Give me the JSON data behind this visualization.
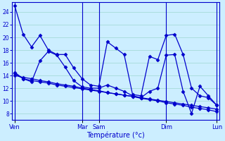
{
  "background_color": "#cceeff",
  "grid_color": "#aadddd",
  "line_color": "#0000cc",
  "xlabel": "Température (°c)",
  "ylabel_ticks": [
    8,
    10,
    12,
    14,
    16,
    18,
    20,
    22,
    24
  ],
  "ylim": [
    7.0,
    25.5
  ],
  "xlim": [
    -0.3,
    24.3
  ],
  "day_labels": [
    "Ven",
    "Mar",
    "Sam",
    "Dim",
    "Lun"
  ],
  "day_tick_positions": [
    0,
    8,
    10,
    18,
    24
  ],
  "vline_positions": [
    0,
    8,
    10,
    18,
    24
  ],
  "series": {
    "line1": {
      "x": [
        0,
        1,
        2,
        3,
        4,
        5,
        6,
        7,
        8,
        9,
        10,
        11,
        12,
        13,
        14,
        15,
        16,
        17,
        18,
        19,
        20,
        21,
        22,
        23,
        24
      ],
      "y": [
        25.0,
        20.5,
        18.5,
        20.3,
        18.0,
        17.3,
        17.3,
        15.2,
        13.5,
        12.5,
        12.3,
        19.3,
        18.3,
        17.3,
        11.0,
        10.8,
        17.0,
        16.5,
        20.3,
        20.5,
        17.3,
        12.0,
        10.8,
        10.5,
        9.3
      ]
    },
    "line2": {
      "x": [
        0,
        1,
        2,
        3,
        4,
        5,
        6,
        7,
        8,
        9,
        10,
        11,
        12,
        13,
        14,
        15,
        16,
        17,
        18,
        19,
        20,
        21,
        22,
        23,
        24
      ],
      "y": [
        14.5,
        13.5,
        13.0,
        16.3,
        17.8,
        17.2,
        15.3,
        13.2,
        12.2,
        12.0,
        12.0,
        12.5,
        12.0,
        11.5,
        10.8,
        10.5,
        11.5,
        12.0,
        17.2,
        17.3,
        11.5,
        8.0,
        12.3,
        10.8,
        9.3
      ]
    },
    "line3": {
      "x": [
        0,
        1,
        2,
        3,
        4,
        5,
        6,
        7,
        8,
        9,
        10,
        11,
        12,
        13,
        14,
        15,
        16,
        17,
        18,
        19,
        20,
        21,
        22,
        23,
        24
      ],
      "y": [
        14.3,
        13.5,
        13.2,
        13.0,
        12.8,
        12.5,
        12.3,
        12.1,
        11.9,
        11.7,
        11.5,
        11.3,
        11.1,
        10.9,
        10.7,
        10.5,
        10.3,
        10.1,
        9.9,
        9.7,
        9.5,
        9.3,
        9.1,
        8.9,
        8.7
      ]
    },
    "line4": {
      "x": [
        0,
        1,
        2,
        3,
        4,
        5,
        6,
        7,
        8,
        9,
        10,
        11,
        12,
        13,
        14,
        15,
        16,
        17,
        18,
        19,
        20,
        21,
        22,
        23,
        24
      ],
      "y": [
        14.0,
        13.7,
        13.5,
        13.2,
        13.0,
        12.7,
        12.5,
        12.3,
        12.0,
        11.8,
        11.6,
        11.3,
        11.1,
        10.9,
        10.7,
        10.4,
        10.2,
        10.0,
        9.7,
        9.5,
        9.3,
        9.0,
        8.8,
        8.6,
        8.3
      ]
    }
  },
  "marker": "D",
  "markersize": 2.5,
  "linewidth": 0.9
}
